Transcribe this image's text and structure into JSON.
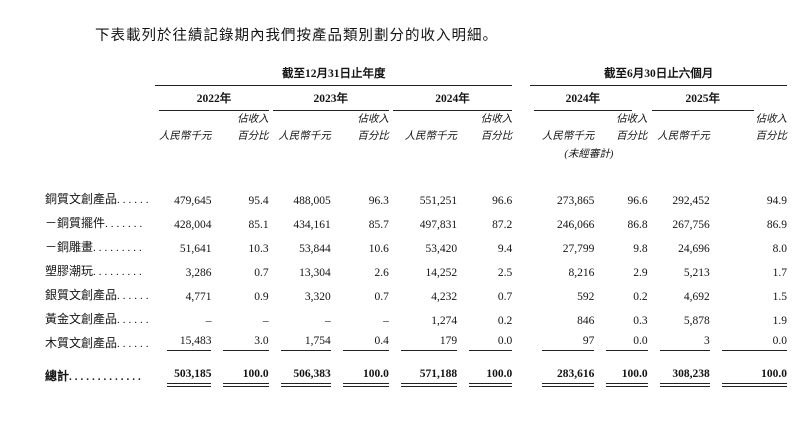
{
  "title": "下表載列於往績記錄期內我們按產品類別劃分的收入明細。",
  "table": {
    "periods": [
      "截至12月31日止年度",
      "截至6月30日止六個月"
    ],
    "years": [
      "2022年",
      "2023年",
      "2024年",
      "2024年",
      "2025年"
    ],
    "col_headers": {
      "amount": "人民幣千元",
      "pct_line1": "佔收入",
      "pct_line2": "百分比",
      "unaudited": "(未經審計)"
    },
    "rows": [
      {
        "label": "銅質文創產品",
        "dots": "......",
        "values": [
          "479,645",
          "95.4",
          "488,005",
          "96.3",
          "551,251",
          "96.6",
          "273,865",
          "96.6",
          "292,452",
          "94.9"
        ]
      },
      {
        "label": "－銅質擺件",
        "dots": ".......",
        "values": [
          "428,004",
          "85.1",
          "434,161",
          "85.7",
          "497,831",
          "87.2",
          "246,066",
          "86.8",
          "267,756",
          "86.9"
        ]
      },
      {
        "label": "－銅雕畫",
        "dots": ".........",
        "values": [
          "51,641",
          "10.3",
          "53,844",
          "10.6",
          "53,420",
          "9.4",
          "27,799",
          "9.8",
          "24,696",
          "8.0"
        ]
      },
      {
        "label": "塑膠潮玩",
        "dots": ".........",
        "values": [
          "3,286",
          "0.7",
          "13,304",
          "2.6",
          "14,252",
          "2.5",
          "8,216",
          "2.9",
          "5,213",
          "1.7"
        ]
      },
      {
        "label": "銀質文創產品",
        "dots": "......",
        "values": [
          "4,771",
          "0.9",
          "3,320",
          "0.7",
          "4,232",
          "0.7",
          "592",
          "0.2",
          "4,692",
          "1.5"
        ]
      },
      {
        "label": "黃金文創產品",
        "dots": "......",
        "values": [
          "–",
          "–",
          "–",
          "–",
          "1,274",
          "0.2",
          "846",
          "0.3",
          "5,878",
          "1.9"
        ]
      },
      {
        "label": "木質文創產品",
        "dots": "......",
        "values": [
          "15,483",
          "3.0",
          "1,754",
          "0.4",
          "179",
          "0.0",
          "97",
          "0.0",
          "3",
          "0.0"
        ]
      }
    ],
    "total": {
      "label": "總計",
      "dots": ".............",
      "values": [
        "503,185",
        "100.0",
        "506,383",
        "100.0",
        "571,188",
        "100.0",
        "283,616",
        "100.0",
        "308,238",
        "100.0"
      ]
    }
  }
}
